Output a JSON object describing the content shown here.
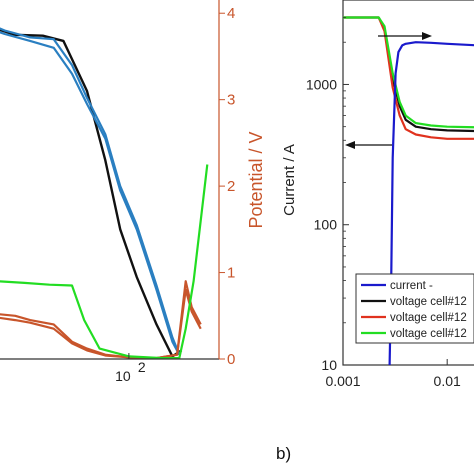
{
  "panel_label": "b)",
  "colors": {
    "black": "#111111",
    "blue": "#2a7fc1",
    "orange": "#c8552b",
    "green": "#22dd22",
    "navy": "#1a1acc",
    "red": "#e0321e",
    "axis": "#333333"
  },
  "chart_data": [
    {
      "type": "line",
      "panel": "left (partial)",
      "xscale": "log",
      "xlim": [
        10,
        300
      ],
      "x_ticks": [
        {
          "value": 100,
          "base": "10",
          "exp": "2"
        }
      ],
      "y2label": "Potential / V",
      "y2lim": [
        0,
        4.5
      ],
      "y2_ticks": [
        0,
        1,
        2,
        3,
        4
      ],
      "series": [
        {
          "color": "black",
          "x": [
            10,
            13,
            16,
            20,
            25,
            35,
            45,
            60,
            75,
            90,
            110,
            140,
            170,
            190
          ],
          "y": [
            4.38,
            4.25,
            4.0,
            3.82,
            3.75,
            3.74,
            3.68,
            3.1,
            2.3,
            1.5,
            0.95,
            0.4,
            0.03,
            0.1
          ]
        },
        {
          "color": "blue",
          "x": [
            17,
            22,
            30,
            40,
            50,
            60,
            75,
            90,
            110,
            140,
            170,
            185
          ],
          "y": [
            3.9,
            3.8,
            3.72,
            3.7,
            3.4,
            3.02,
            2.6,
            2.0,
            1.55,
            0.85,
            0.25,
            0.05
          ]
        },
        {
          "color": "blue",
          "x": [
            17,
            22,
            30,
            40,
            50,
            60,
            75,
            90,
            110,
            140,
            170,
            185
          ],
          "y": [
            3.85,
            3.76,
            3.68,
            3.6,
            3.3,
            2.95,
            2.55,
            1.95,
            1.5,
            0.8,
            0.2,
            0.05
          ]
        },
        {
          "color": "orange",
          "x": [
            10,
            13,
            16,
            20,
            25,
            30,
            40,
            50,
            60,
            75,
            100,
            140,
            180,
            200,
            215,
            240
          ],
          "y": [
            1.3,
            0.95,
            0.6,
            0.52,
            0.5,
            0.45,
            0.4,
            0.2,
            0.12,
            0.05,
            0.02,
            0.01,
            0.05,
            0.9,
            0.6,
            0.4
          ]
        },
        {
          "color": "orange",
          "x": [
            10,
            13,
            16,
            20,
            25,
            30,
            40,
            50,
            60,
            75,
            100,
            140,
            180,
            200,
            215,
            240
          ],
          "y": [
            1.2,
            0.9,
            0.55,
            0.48,
            0.45,
            0.42,
            0.35,
            0.18,
            0.1,
            0.04,
            0.02,
            0.01,
            0.05,
            0.8,
            0.55,
            0.35
          ]
        },
        {
          "color": "green",
          "x": [
            10,
            12,
            15,
            20,
            28,
            38,
            50,
            58,
            70,
            100,
            150,
            185,
            200,
            220,
            240,
            260
          ],
          "y": [
            1.85,
            1.3,
            1.0,
            0.9,
            0.88,
            0.86,
            0.85,
            0.45,
            0.12,
            0.03,
            0.01,
            0.01,
            0.35,
            0.9,
            1.6,
            2.25
          ]
        }
      ]
    },
    {
      "type": "line",
      "panel": "b) (partial)",
      "xscale": "log",
      "yscale": "log",
      "xlim": [
        0.001,
        0.05
      ],
      "ylim": [
        10,
        4000
      ],
      "ylabel": "Current / A",
      "x_ticks": [
        "0.001",
        "0.01"
      ],
      "x_tick_values": [
        0.001,
        0.01
      ],
      "y_ticks": [
        "10",
        "100",
        "1000"
      ],
      "y_tick_values": [
        10,
        100,
        1000
      ],
      "legend": {
        "position": "bottom-right",
        "entries": [
          {
            "label": "current -",
            "color": "navy"
          },
          {
            "label": "voltage cell#12",
            "color": "black"
          },
          {
            "label": "voltage cell#12",
            "color": "red"
          },
          {
            "label": "voltage cell#12",
            "color": "green"
          }
        ]
      },
      "annotations": [
        "arrow right",
        "arrow left"
      ],
      "series": [
        {
          "color": "navy",
          "x": [
            0.0028,
            0.0029,
            0.003,
            0.0032,
            0.0034,
            0.0037,
            0.004,
            0.005,
            0.007,
            0.01,
            0.02,
            0.05
          ],
          "y": [
            10,
            40,
            300,
            1200,
            1700,
            1900,
            1950,
            2000,
            1980,
            1950,
            1900,
            1850
          ]
        },
        {
          "color": "black",
          "x": [
            0.001,
            0.0022,
            0.0025,
            0.003,
            0.0035,
            0.004,
            0.005,
            0.007,
            0.01,
            0.02,
            0.05
          ],
          "y": [
            3000,
            3000,
            2500,
            1100,
            700,
            560,
            500,
            480,
            470,
            465,
            460
          ]
        },
        {
          "color": "red",
          "x": [
            0.001,
            0.0022,
            0.0025,
            0.003,
            0.0035,
            0.004,
            0.005,
            0.007,
            0.01,
            0.02,
            0.05
          ],
          "y": [
            3000,
            3000,
            2400,
            950,
            600,
            480,
            440,
            420,
            410,
            410,
            410
          ]
        },
        {
          "color": "green",
          "x": [
            0.001,
            0.0022,
            0.0025,
            0.003,
            0.0035,
            0.004,
            0.005,
            0.007,
            0.01,
            0.02,
            0.05
          ],
          "y": [
            3000,
            3000,
            2600,
            1200,
            750,
            600,
            530,
            510,
            500,
            495,
            490
          ]
        }
      ]
    }
  ]
}
